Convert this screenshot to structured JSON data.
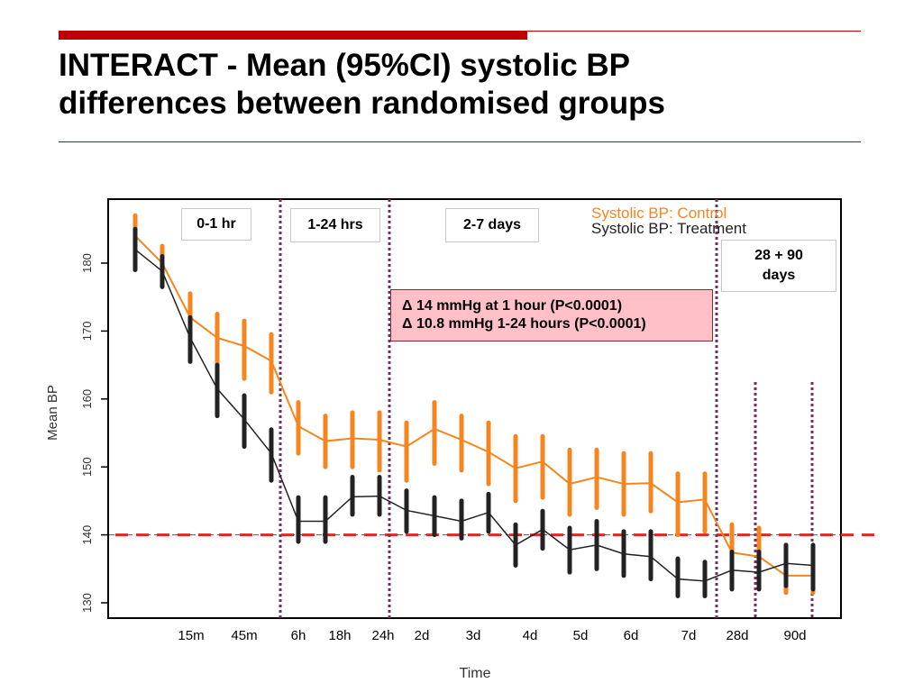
{
  "slide": {
    "title_line1": "INTERACT - Mean (95%CI) systolic BP",
    "title_line2": "differences between randomised groups"
  },
  "period_boxes": {
    "p1": "0-1 hr",
    "p2": "1-24 hrs",
    "p3": "2-7 days",
    "p4_line1": "28 + 90",
    "p4_line2": "days"
  },
  "annotation": {
    "line1": "Δ 14 mmHg at 1 hour (P<0.0001)",
    "line2": "Δ 10.8 mmHg 1-24 hours (P<0.0001)"
  },
  "chart_data": {
    "type": "line",
    "xlabel": "Time",
    "ylabel": "Mean BP",
    "ylim": [
      129,
      189
    ],
    "yticks": [
      130,
      140,
      150,
      160,
      170,
      180
    ],
    "x_tick_labels": [
      "15m",
      "45m",
      "6h",
      "18h",
      "24h",
      "2d",
      "3d",
      "4d",
      "5d",
      "6d",
      "7d",
      "28d",
      "90d"
    ],
    "reference_line": 140,
    "colors": {
      "control": "#f5861f",
      "treatment": "#222222",
      "reference": "#e0281e",
      "dividers": "#7b2c5e"
    },
    "legend_placement": "top-right",
    "series": [
      {
        "name": "Systolic BP: Control",
        "values": [
          184,
          180,
          172,
          169,
          167.8,
          165.6,
          156,
          153.8,
          154.2,
          154,
          153,
          155.6,
          154,
          152.2,
          149.8,
          150.8,
          147.5,
          148.5,
          147.5,
          147.6,
          144.8,
          145.2,
          137.4,
          136.8,
          134,
          134
        ],
        "ci_low": [
          181,
          178.5,
          169,
          164.5,
          163,
          161,
          152,
          150,
          150,
          149.5,
          148,
          150.5,
          149.5,
          147.5,
          145,
          145.5,
          143,
          144,
          143,
          143.5,
          140,
          140.5,
          133.5,
          133,
          131.5,
          131.5
        ],
        "ci_high": [
          187,
          182.5,
          175.5,
          172.5,
          171.5,
          169.5,
          159.5,
          157.5,
          158,
          158,
          156.5,
          159.5,
          157.5,
          156.5,
          154.5,
          154.5,
          152.5,
          152.5,
          152,
          152,
          149,
          149,
          141.5,
          141,
          137.5,
          137.5
        ]
      },
      {
        "name": "Systolic BP: Treatment",
        "values": [
          182,
          178.8,
          169,
          161.5,
          157,
          152,
          142,
          142,
          145.6,
          145.7,
          143.6,
          142.8,
          142,
          143.3,
          138.5,
          140.8,
          137.8,
          138.5,
          137.2,
          136.8,
          133.5,
          133.2,
          134.8,
          134.5,
          135.8,
          135.5
        ],
        "ci_low": [
          179,
          176.5,
          165.5,
          157.5,
          153,
          148,
          139,
          139,
          143,
          143,
          140.5,
          140,
          139.5,
          140.5,
          135.5,
          138,
          134.5,
          135,
          134,
          133.5,
          131,
          131,
          132,
          132,
          132.5,
          132
        ],
        "ci_high": [
          185,
          181,
          172,
          165,
          160.5,
          155.5,
          145.5,
          145.5,
          148.5,
          148.5,
          146.5,
          145.5,
          145,
          146,
          141.5,
          143.5,
          141,
          142,
          140.5,
          140.5,
          136.5,
          136,
          137.5,
          137.5,
          138.5,
          138.5
        ]
      }
    ]
  }
}
